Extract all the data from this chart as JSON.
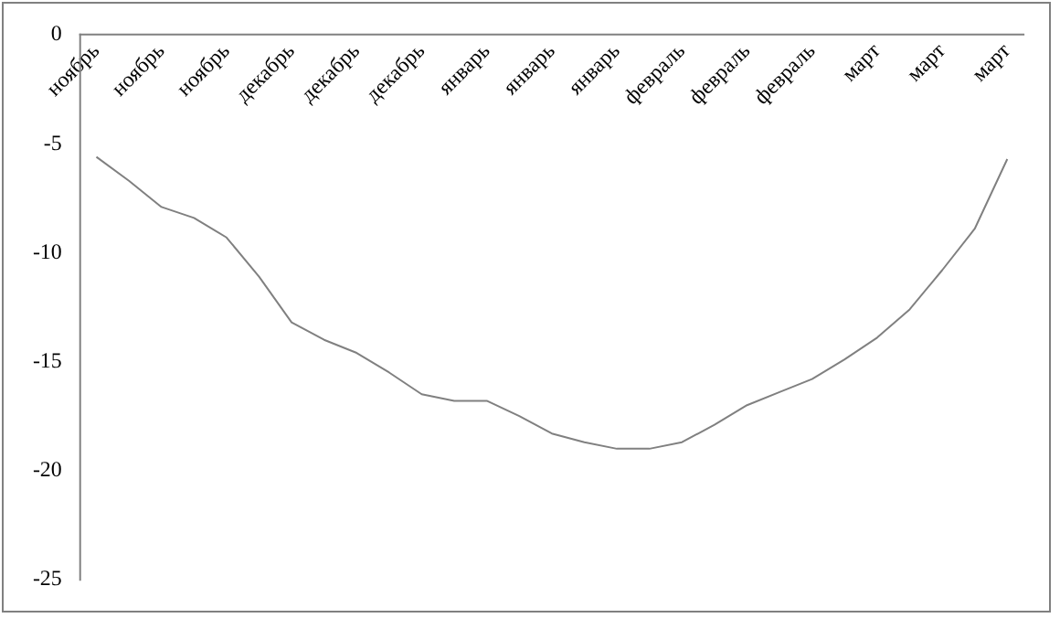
{
  "chart_data": {
    "type": "line",
    "categories": [
      "ноябрь",
      null,
      "ноябрь",
      null,
      "ноябрь",
      null,
      "декабрь",
      null,
      "декабрь",
      null,
      "декабрь",
      null,
      "январь",
      null,
      "январь",
      null,
      "январь",
      null,
      "февраль",
      null,
      "февраль",
      null,
      "февраль",
      null,
      "март",
      null,
      "март",
      null,
      "март"
    ],
    "series": [
      {
        "color": "#808080",
        "values": [
          -5.6,
          -6.7,
          -7.9,
          -8.4,
          -9.3,
          -11.1,
          -13.2,
          -14.0,
          -14.6,
          -15.5,
          -16.5,
          -16.8,
          -16.8,
          -17.5,
          -18.3,
          -18.7,
          -19.0,
          -19.0,
          -18.7,
          -17.9,
          -17.0,
          -16.4,
          -15.8,
          -14.9,
          -13.9,
          -12.6,
          -10.8,
          -8.9,
          -5.7
        ]
      }
    ],
    "ylim": [
      -25,
      0
    ],
    "yticks": [
      0,
      -5,
      -10,
      -15,
      -20,
      -25
    ],
    "grid": false,
    "legend": false,
    "marker": "none",
    "line_style": "solid"
  }
}
